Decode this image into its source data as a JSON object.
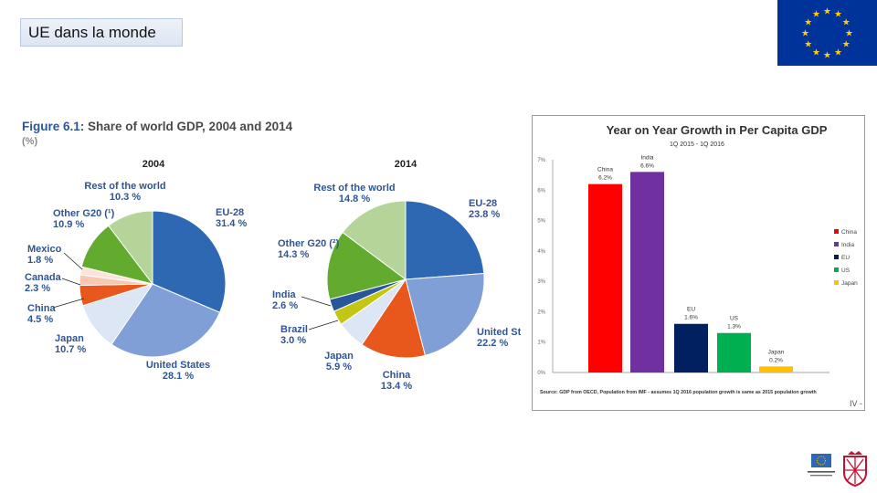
{
  "slide": {
    "title": "UE dans la monde",
    "page_marker": "IV -"
  },
  "figure": {
    "number": "Figure 6.1:",
    "title": "Share of world GDP, 2004 and 2014",
    "unit": "(%)"
  },
  "colors": {
    "eu": "#2e68b3",
    "united_states": "#7f9fd6",
    "japan": "#dce6f5",
    "china": "#e8571c",
    "canada": "#f8c8b3",
    "mexico": "#fbe4d9",
    "brazil": "#c4c614",
    "india": "#27569a",
    "other_g20": "#63ab2f",
    "rest": "#b4d49a",
    "bar_china": "#ff0000",
    "bar_india": "#7030a0",
    "bar_eu": "#002060",
    "bar_us": "#00b050",
    "bar_japan": "#ffc000",
    "eu_flag": "#003399",
    "eu_star": "#ffcc00"
  },
  "chart_data": [
    {
      "type": "pie",
      "title": "2004",
      "slices": [
        {
          "label": "EU-28",
          "value": 31.4,
          "value_label": "31.4 %",
          "color": "#2e68b3"
        },
        {
          "label": "United States",
          "value": 28.1,
          "value_label": "28.1 %",
          "color": "#7f9fd6"
        },
        {
          "label": "Japan",
          "value": 10.7,
          "value_label": "10.7 %",
          "color": "#dce6f5"
        },
        {
          "label": "China",
          "value": 4.5,
          "value_label": "4.5 %",
          "color": "#e8571c"
        },
        {
          "label": "Canada",
          "value": 2.3,
          "value_label": "2.3 %",
          "color": "#f8c8b3"
        },
        {
          "label": "Mexico",
          "value": 1.8,
          "value_label": "1.8 %",
          "color": "#fbe4d9"
        },
        {
          "label": "Other G20 (¹)",
          "value": 10.9,
          "value_label": "10.9 %",
          "color": "#63ab2f"
        },
        {
          "label": "Rest of the world",
          "value": 10.3,
          "value_label": "10.3 %",
          "color": "#b4d49a"
        }
      ]
    },
    {
      "type": "pie",
      "title": "2014",
      "slices": [
        {
          "label": "EU-28",
          "value": 23.8,
          "value_label": "23.8 %",
          "color": "#2e68b3"
        },
        {
          "label": "United States",
          "value": 22.2,
          "value_label": "22.2 %",
          "color": "#7f9fd6"
        },
        {
          "label": "China",
          "value": 13.4,
          "value_label": "13.4 %",
          "color": "#e8571c"
        },
        {
          "label": "Japan",
          "value": 5.9,
          "value_label": "5.9 %",
          "color": "#dce6f5"
        },
        {
          "label": "Brazil",
          "value": 3.0,
          "value_label": "3.0 %",
          "color": "#c4c614"
        },
        {
          "label": "India",
          "value": 2.6,
          "value_label": "2.6 %",
          "color": "#27569a"
        },
        {
          "label": "Other G20 (²)",
          "value": 14.3,
          "value_label": "14.3 %",
          "color": "#63ab2f"
        },
        {
          "label": "Rest of the world",
          "value": 14.8,
          "value_label": "14.8 %",
          "color": "#b4d49a"
        }
      ]
    },
    {
      "type": "bar",
      "title": "Year on Year Growth in Per Capita GDP",
      "subtitle": "1Q 2015 - 1Q 2016",
      "categories": [
        "China",
        "India",
        "EU",
        "US",
        "Japan"
      ],
      "values": [
        6.2,
        6.6,
        1.6,
        1.3,
        0.2
      ],
      "data_labels": [
        "6.2%",
        "6.6%",
        "1.6%",
        "1.3%",
        "0.2%"
      ],
      "colors": [
        "#ff0000",
        "#7030a0",
        "#002060",
        "#00b050",
        "#ffc000"
      ],
      "ylim": [
        0,
        7
      ],
      "yticks": [
        "0%",
        "1%",
        "2%",
        "3%",
        "4%",
        "5%",
        "6%",
        "7%"
      ],
      "legend": [
        "China",
        "India",
        "EU",
        "US",
        "Japan"
      ],
      "legend_position": "right",
      "source": "Source: GDP from OECD, Population from IMF - assumes 1Q 2016 population growth is same as 2015 population growth"
    }
  ]
}
